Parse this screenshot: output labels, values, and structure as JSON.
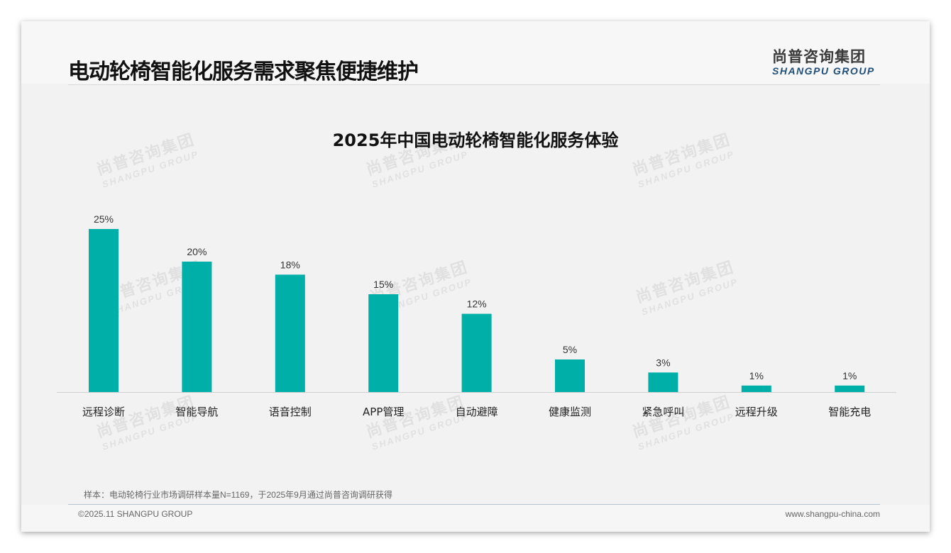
{
  "header": {
    "title": "电动轮椅智能化服务需求聚焦便捷维护",
    "logo_cn": "尚普咨询集团",
    "logo_en": "SHANGPU GROUP"
  },
  "watermark": {
    "cn": "尚普咨询集团",
    "en": "SHANGPU GROUP"
  },
  "chart_data": {
    "type": "bar",
    "title": "2025年中国电动轮椅智能化服务体验",
    "categories": [
      "远程诊断",
      "智能导航",
      "语音控制",
      "APP管理",
      "自动避障",
      "健康监测",
      "紧急呼叫",
      "远程升级",
      "智能充电"
    ],
    "values": [
      25,
      20,
      18,
      15,
      12,
      5,
      3,
      1,
      1
    ],
    "value_labels": [
      "25%",
      "20%",
      "18%",
      "15%",
      "12%",
      "5%",
      "3%",
      "1%",
      "1%"
    ],
    "unit": "%",
    "xlabel": "",
    "ylabel": "",
    "ylim": [
      0,
      25
    ],
    "grid": false,
    "color": "#00b0a8"
  },
  "footer": {
    "note": "样本：电动轮椅行业市场调研样本量N=1169，于2025年9月通过尚普咨询调研获得",
    "copyright": "©2025.11 SHANGPU GROUP",
    "website": "www.shangpu-china.com"
  }
}
